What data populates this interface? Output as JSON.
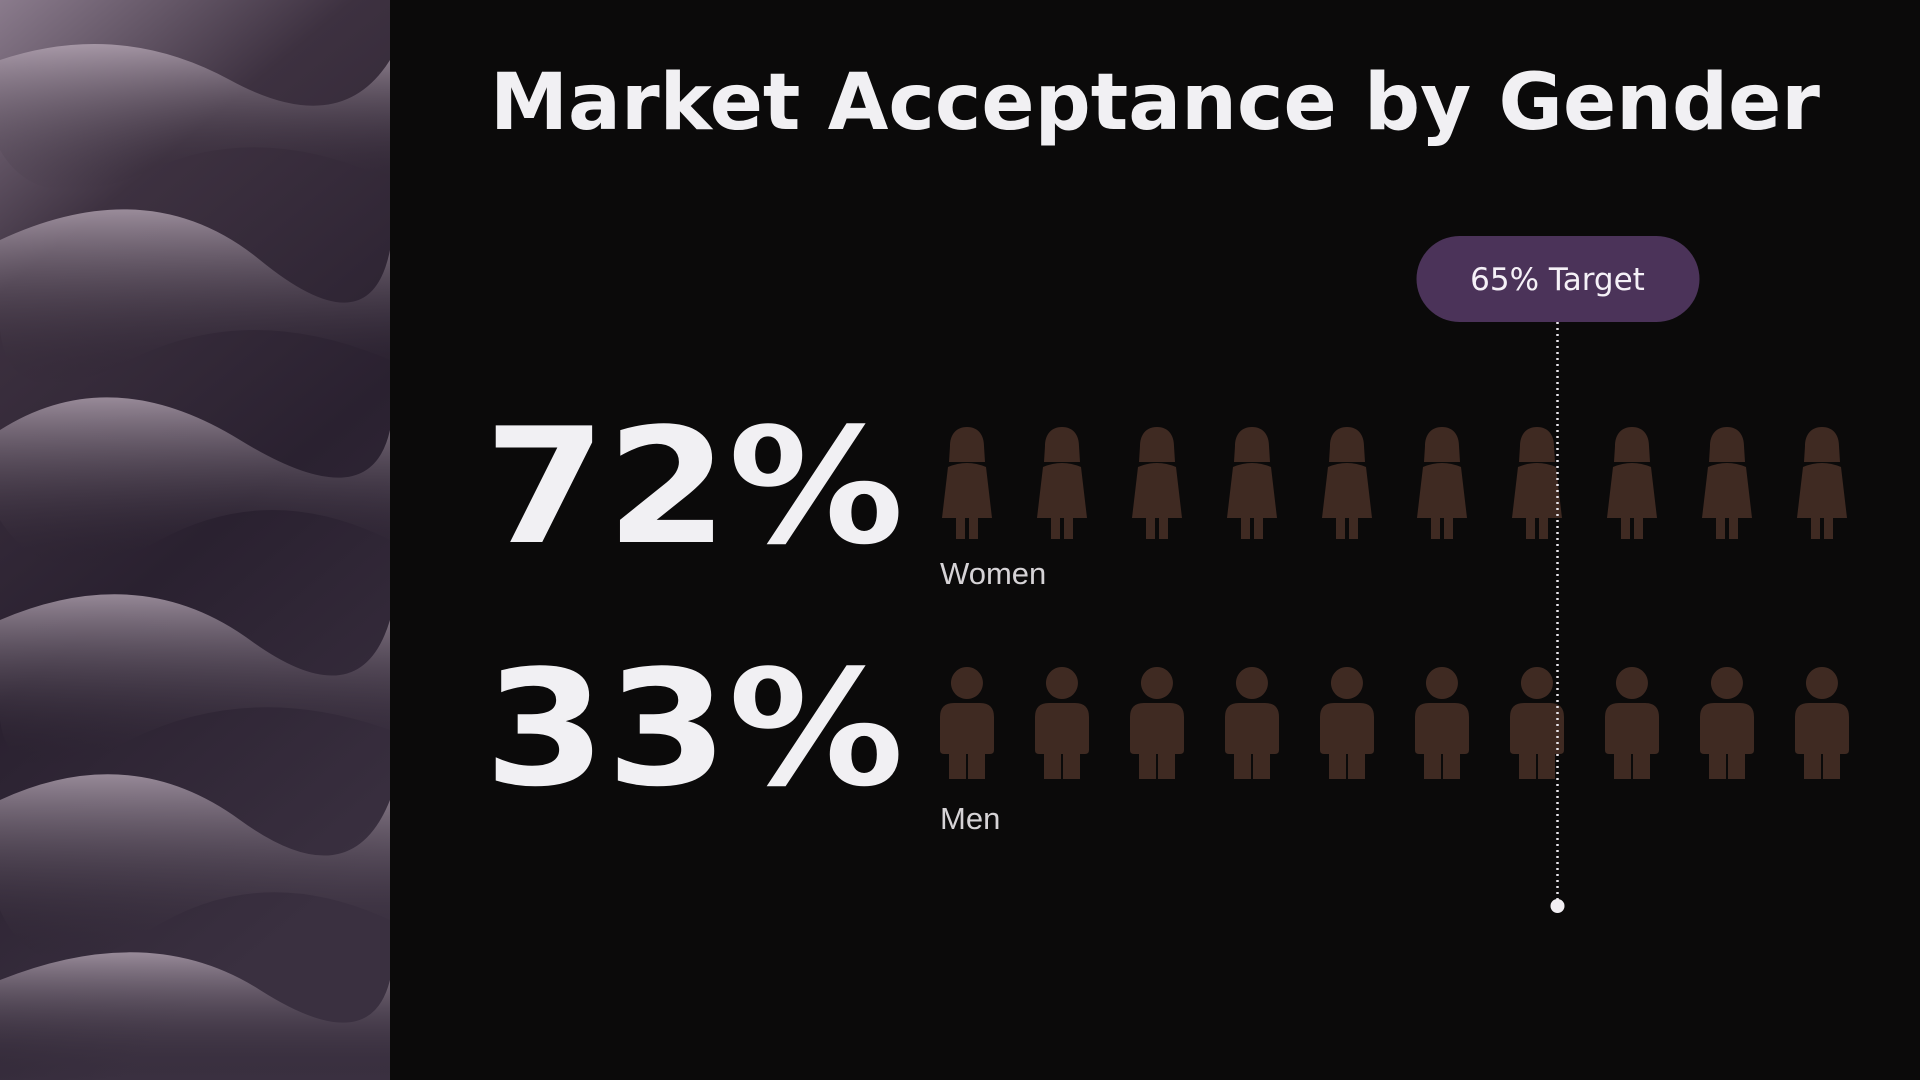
{
  "chart_data": {
    "type": "pictogram",
    "title": "Market Acceptance by Gender",
    "categories": [
      "Women",
      "Men"
    ],
    "values": [
      72,
      33
    ],
    "value_labels": [
      "72%",
      "33%"
    ],
    "xlim": [
      0,
      100
    ],
    "fill_color": "#c47b5a",
    "empty_color": "#3f2a22",
    "target": {
      "value": 65,
      "label": "65% Target",
      "color": "#4b3359"
    }
  }
}
